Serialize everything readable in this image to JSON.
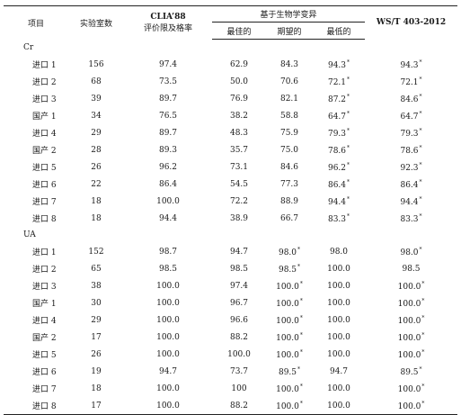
{
  "header": {
    "item": "项目",
    "labs": "实验室数",
    "clia_line1": "CLIA’88",
    "clia_line2": "评价限及格率",
    "bio_group": "基于生物学变异",
    "bio_opt": "最佳的",
    "bio_des": "期望的",
    "bio_min": "最低的",
    "ws": "WS/T 403-2012"
  },
  "sections": [
    {
      "name": "Cr",
      "rows": [
        {
          "name": "进口 1",
          "labs": "156",
          "clia": "97.4",
          "opt": "62.9",
          "des": "84.3",
          "min": "94.3",
          "min_star": "*",
          "ws": "94.3",
          "ws_star": "*"
        },
        {
          "name": "进口 2",
          "labs": "68",
          "clia": "73.5",
          "opt": "50.0",
          "des": "70.6",
          "min": "72.1",
          "min_star": "*",
          "ws": "72.1",
          "ws_star": "*"
        },
        {
          "name": "进口 3",
          "labs": "39",
          "clia": "89.7",
          "opt": "76.9",
          "des": "82.1",
          "min": "87.2",
          "min_star": "*",
          "ws": "84.6",
          "ws_star": "*"
        },
        {
          "name": "国产 1",
          "labs": "34",
          "clia": "76.5",
          "opt": "38.2",
          "des": "58.8",
          "min": "64.7",
          "min_star": "*",
          "ws": "64.7",
          "ws_star": "*"
        },
        {
          "name": "进口 4",
          "labs": "29",
          "clia": "89.7",
          "opt": "48.3",
          "des": "75.9",
          "min": "79.3",
          "min_star": "*",
          "ws": "79.3",
          "ws_star": "*"
        },
        {
          "name": "国产 2",
          "labs": "28",
          "clia": "89.3",
          "opt": "35.7",
          "des": "75.0",
          "min": "78.6",
          "min_star": "*",
          "ws": "78.6",
          "ws_star": "*"
        },
        {
          "name": "进口 5",
          "labs": "26",
          "clia": "96.2",
          "opt": "73.1",
          "des": "84.6",
          "min": "96.2",
          "min_star": "*",
          "ws": "92.3",
          "ws_star": "*"
        },
        {
          "name": "进口 6",
          "labs": "22",
          "clia": "86.4",
          "opt": "54.5",
          "des": "77.3",
          "min": "86.4",
          "min_star": "*",
          "ws": "86.4",
          "ws_star": "*"
        },
        {
          "name": "进口 7",
          "labs": "18",
          "clia": "100.0",
          "opt": "72.2",
          "des": "88.9",
          "min": "94.4",
          "min_star": "*",
          "ws": "94.4",
          "ws_star": "*"
        },
        {
          "name": "进口 8",
          "labs": "18",
          "clia": "94.4",
          "opt": "38.9",
          "des": "66.7",
          "min": "83.3",
          "min_star": "*",
          "ws": "83.3",
          "ws_star": "*"
        }
      ]
    },
    {
      "name": "UA",
      "rows": [
        {
          "name": "进口 1",
          "labs": "152",
          "clia": "98.7",
          "opt": "94.7",
          "des": "98.0",
          "des_star": "*",
          "min": "98.0",
          "ws": "98.0",
          "ws_star": "*"
        },
        {
          "name": "进口 2",
          "labs": "65",
          "clia": "98.5",
          "opt": "98.5",
          "des": "98.5",
          "des_star": "*",
          "min": "100.0",
          "ws": "98.5"
        },
        {
          "name": "进口 3",
          "labs": "38",
          "clia": "100.0",
          "opt": "97.4",
          "des": "100.0",
          "des_star": "*",
          "min": "100.0",
          "ws": "100.0",
          "ws_star": "*"
        },
        {
          "name": "国产 1",
          "labs": "30",
          "clia": "100.0",
          "opt": "96.7",
          "des": "100.0",
          "des_star": "*",
          "min": "100.0",
          "ws": "100.0",
          "ws_star": "*"
        },
        {
          "name": "进口 4",
          "labs": "29",
          "clia": "100.0",
          "opt": "96.6",
          "des": "100.0",
          "des_star": "*",
          "min": "100.0",
          "ws": "100.0",
          "ws_star": "*"
        },
        {
          "name": "国产 2",
          "labs": "17",
          "clia": "100.0",
          "opt": "88.2",
          "des": "100.0",
          "des_star": "*",
          "min": "100.0",
          "ws": "100.0",
          "ws_star": "*"
        },
        {
          "name": "进口 5",
          "labs": "26",
          "clia": "100.0",
          "opt": "100.0",
          "des": "100.0",
          "des_star": "*",
          "min": "100.0",
          "ws": "100.0",
          "ws_star": "*"
        },
        {
          "name": "进口 6",
          "labs": "19",
          "clia": "94.7",
          "opt": "73.7",
          "des": "89.5",
          "des_star": "*",
          "min": "94.7",
          "ws": "89.5",
          "ws_star": "*"
        },
        {
          "name": "进口 7",
          "labs": "18",
          "clia": "100.0",
          "opt": "100",
          "des": "100.0",
          "des_star": "*",
          "min": "100.0",
          "ws": "100.0",
          "ws_star": "*"
        },
        {
          "name": "进口 8",
          "labs": "17",
          "clia": "100.0",
          "opt": "88.2",
          "des": "100.0",
          "des_star": "*",
          "min": "100.0",
          "ws": "100.0",
          "ws_star": "*"
        }
      ]
    }
  ]
}
